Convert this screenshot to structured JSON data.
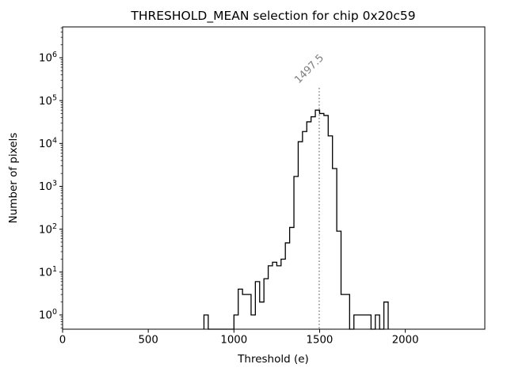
{
  "figure": {
    "title": "THRESHOLD_MEAN selection for chip 0x20c59",
    "xlabel": "Threshold (e)",
    "ylabel": "Number of pixels"
  },
  "chart_data": {
    "type": "bar",
    "subtype": "step-histogram",
    "title": "THRESHOLD_MEAN selection for chip 0x20c59",
    "xlabel": "Threshold (e)",
    "ylabel": "Number of pixels",
    "yscale": "log",
    "grid": false,
    "legend": "none",
    "xlim": [
      0,
      2464
    ],
    "ylim": [
      0.46,
      5300000
    ],
    "x_ticks": [
      0,
      500,
      1000,
      1500,
      2000
    ],
    "y_tick_exponents": [
      0,
      1,
      2,
      3,
      4,
      5,
      6
    ],
    "bin_start": 825,
    "bin_width": 25,
    "counts": [
      1,
      0,
      0,
      0,
      0,
      0,
      0,
      1,
      4,
      3,
      3,
      1,
      6,
      2,
      7,
      14,
      17,
      14,
      20,
      48,
      110,
      1700,
      11000,
      19000,
      32000,
      42000,
      60000,
      50000,
      45000,
      15000,
      2600,
      90,
      3,
      3,
      0,
      1,
      1,
      1,
      1,
      0,
      1,
      0,
      2
    ],
    "vline": {
      "x": 1497.5,
      "label": "1497.5"
    },
    "colors": {
      "histogram": "#000000",
      "vline": "#7f7f7f",
      "vline_label": "#7f7f7f",
      "axis": "#000000",
      "text": "#000000",
      "background": "#ffffff"
    }
  }
}
